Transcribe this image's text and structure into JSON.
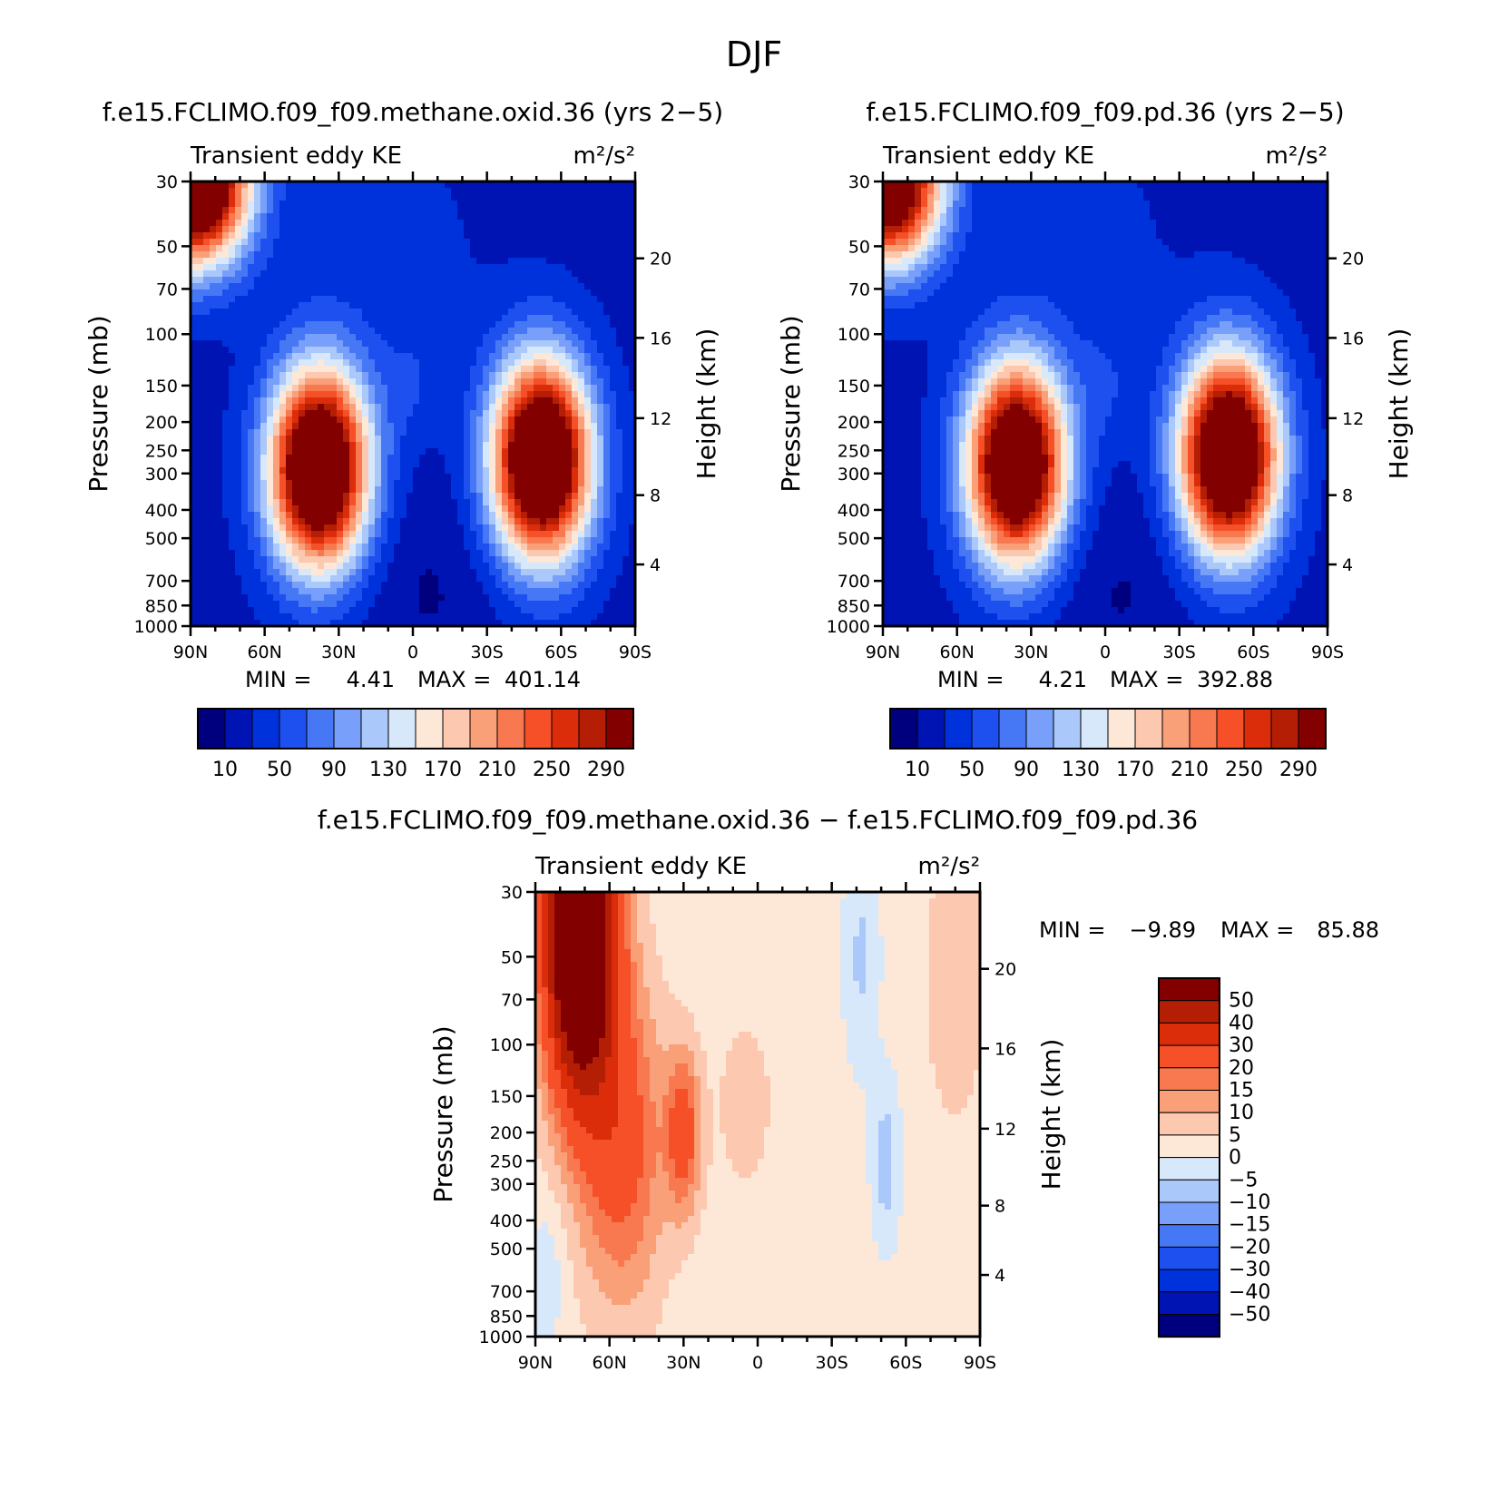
{
  "figure_title": "DJF",
  "colors": {
    "scale": [
      "#00007f",
      "#0014b4",
      "#0032dc",
      "#1e50f0",
      "#4678f5",
      "#78a0fa",
      "#aac8fa",
      "#d7e8fa",
      "#fde8d7",
      "#fcc8b0",
      "#faa078",
      "#f87850",
      "#f55028",
      "#dc2d0a",
      "#b41e05",
      "#820000"
    ]
  },
  "chart_data": [
    {
      "id": "panel1",
      "type": "heatmap",
      "title": "f.e15.FCLIMO.f09_f09.methane.oxid.36 (yrs 2−5)",
      "left_label": "Transient eddy KE",
      "right_label": "m²/s²",
      "ylabel": "Pressure (mb)",
      "ylabel_right": "Height (km)",
      "x_ticks": [
        "90N",
        "60N",
        "30N",
        "0",
        "30S",
        "60S",
        "90S"
      ],
      "y_ticks": [
        "30",
        "50",
        "70",
        "100",
        "150",
        "200",
        "250",
        "300",
        "400",
        "500",
        "700",
        "850",
        "1000"
      ],
      "y_ticks_right": [
        "20",
        "16",
        "12",
        "8",
        "4"
      ],
      "stats": {
        "min_label": "MIN =",
        "min": "4.41",
        "max_label": "MAX =",
        "max": "401.14"
      },
      "colorbar_labels": [
        "10",
        "50",
        "90",
        "130",
        "170",
        "210",
        "250",
        "290"
      ],
      "jets": [
        {
          "lat": 38,
          "p": 290,
          "peak": 395
        },
        {
          "lat": -52,
          "p": 270,
          "peak": 400
        }
      ],
      "polar_vortex": {
        "lat": 88,
        "p": 30,
        "peak": 401
      }
    },
    {
      "id": "panel2",
      "type": "heatmap",
      "title": "f.e15.FCLIMO.f09_f09.pd.36 (yrs 2−5)",
      "left_label": "Transient eddy KE",
      "right_label": "m²/s²",
      "ylabel": "Pressure (mb)",
      "ylabel_right": "Height (km)",
      "x_ticks": [
        "90N",
        "60N",
        "30N",
        "0",
        "30S",
        "60S",
        "90S"
      ],
      "y_ticks": [
        "30",
        "50",
        "70",
        "100",
        "150",
        "200",
        "250",
        "300",
        "400",
        "500",
        "700",
        "850",
        "1000"
      ],
      "y_ticks_right": [
        "20",
        "16",
        "12",
        "8",
        "4"
      ],
      "stats": {
        "min_label": "MIN =",
        "min": "4.21",
        "max_label": "MAX =",
        "max": "392.88"
      },
      "colorbar_labels": [
        "10",
        "50",
        "90",
        "130",
        "170",
        "210",
        "250",
        "290"
      ],
      "jets": [
        {
          "lat": 36,
          "p": 280,
          "peak": 380
        },
        {
          "lat": -50,
          "p": 260,
          "peak": 392
        }
      ],
      "polar_vortex": {
        "lat": 88,
        "p": 30,
        "peak": 370
      }
    },
    {
      "id": "panel3",
      "type": "heatmap",
      "title": "f.e15.FCLIMO.f09_f09.methane.oxid.36 − f.e15.FCLIMO.f09_f09.pd.36",
      "left_label": "Transient eddy KE",
      "right_label": "m²/s²",
      "ylabel": "Pressure (mb)",
      "ylabel_right": "Height (km)",
      "x_ticks": [
        "90N",
        "60N",
        "30N",
        "0",
        "30S",
        "60S",
        "90S"
      ],
      "y_ticks": [
        "30",
        "50",
        "70",
        "100",
        "150",
        "200",
        "250",
        "300",
        "400",
        "500",
        "700",
        "850",
        "1000"
      ],
      "y_ticks_right": [
        "20",
        "16",
        "12",
        "8",
        "4"
      ],
      "stats": {
        "min_label": "MIN =",
        "min": "−9.89",
        "max_label": "MAX =",
        "max": "85.88"
      },
      "colorbar_labels": [
        "50",
        "40",
        "30",
        "20",
        "15",
        "10",
        "5",
        "0",
        "−5",
        "−10",
        "−15",
        "−20",
        "−30",
        "−40",
        "−50"
      ],
      "features": [
        {
          "lat": 72,
          "p": 40,
          "peak": 85.88
        },
        {
          "lat": 30,
          "p": 200,
          "peak": 22
        },
        {
          "lat": -52,
          "p": 250,
          "peak": -9.89
        }
      ]
    }
  ]
}
